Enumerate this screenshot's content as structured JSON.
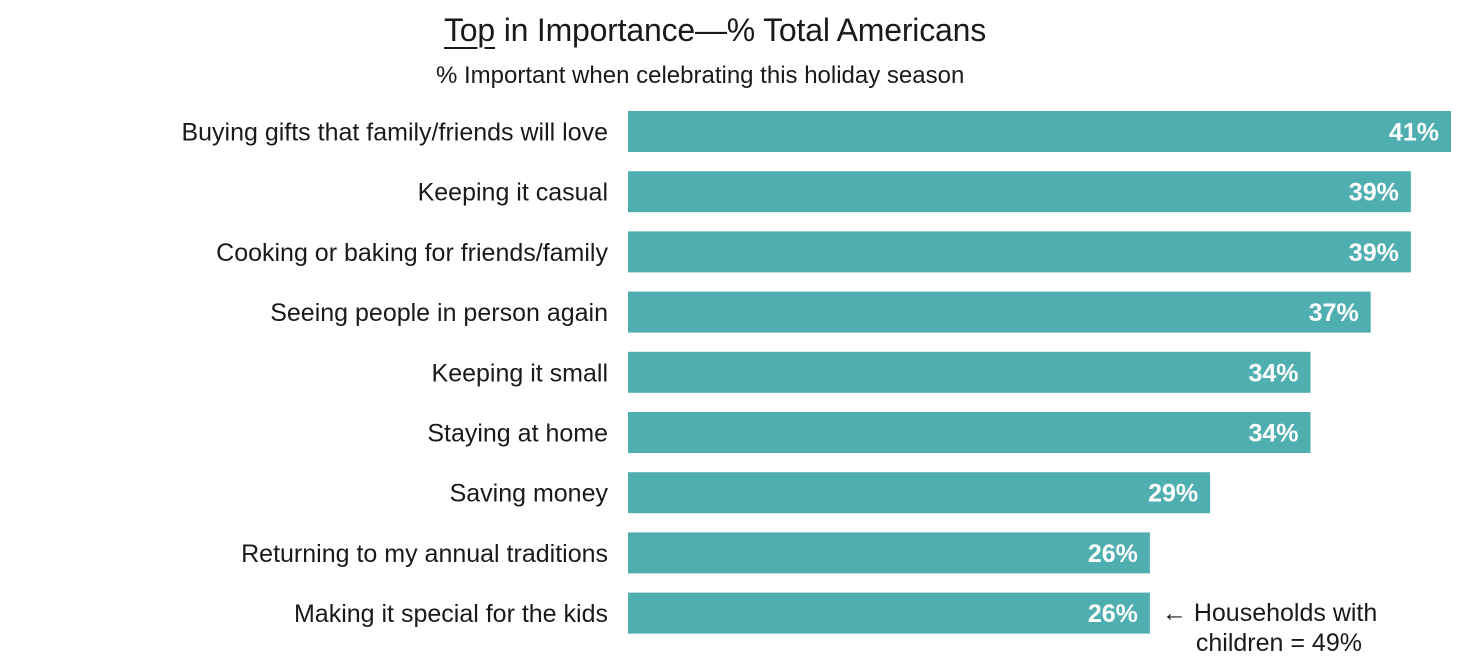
{
  "chart_data": {
    "type": "bar",
    "orientation": "horizontal",
    "title": "Top in Importance—% Total Americans",
    "title_emphasis": "Top",
    "title_rest": " in Importance—% Total Americans",
    "subtitle": "% Important when celebrating this holiday season",
    "categories": [
      "Buying gifts that family/friends will love",
      "Keeping it casual",
      "Cooking or baking for friends/family",
      "Seeing people in person again",
      "Keeping it small",
      "Staying at home",
      "Saving money",
      "Returning to my annual traditions",
      "Making it special for the kids"
    ],
    "values": [
      41,
      39,
      39,
      37,
      34,
      34,
      29,
      26,
      26
    ],
    "value_labels": [
      "41%",
      "39%",
      "39%",
      "37%",
      "34%",
      "34%",
      "29%",
      "26%",
      "26%"
    ],
    "unit": "%",
    "xlim": [
      0,
      41
    ],
    "grid": false,
    "legend": "none",
    "bar_color": "#4faeb0",
    "annotation": {
      "category": "Making it special for the kids",
      "line1": "← Households with",
      "line2": "children = 49%"
    }
  }
}
